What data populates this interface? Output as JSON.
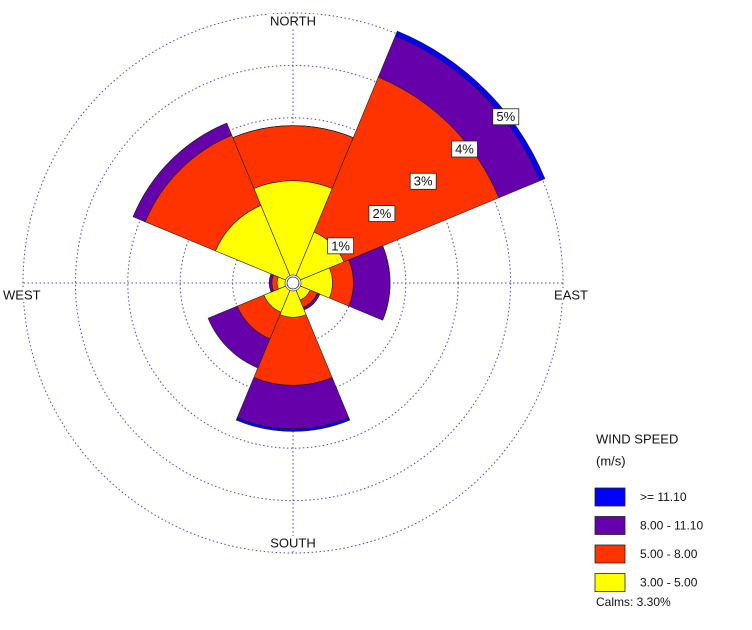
{
  "chart_data": {
    "type": "windrose",
    "categories": [
      "NORTH",
      null,
      "EAST",
      null,
      "SOUTH",
      null,
      "WEST",
      null
    ],
    "series": [
      {
        "name": ">= 11.10",
        "color": "#0000ff",
        "values": [
          0,
          0.1,
          0,
          0,
          0.05,
          0,
          0,
          0
        ]
      },
      {
        "name": "8.00 - 11.10",
        "color": "#6600aa",
        "values": [
          0,
          0.85,
          0.7,
          0.05,
          0.83,
          0.6,
          0.05,
          0.25
        ]
      },
      {
        "name": "5.00 - 8.00",
        "color": "#ff3300",
        "values": [
          1.05,
          3.2,
          0.4,
          0.15,
          1.3,
          0.55,
          0.1,
          1.45
        ]
      },
      {
        "name": "3.00 - 5.00",
        "color": "#ffff00",
        "values": [
          1.8,
          0.9,
          0.6,
          0.2,
          0.5,
          0.45,
          0.15,
          1.45
        ]
      }
    ],
    "rlim": [
      0,
      5
    ],
    "rticks": [
      {
        "value": 1,
        "label": "1%"
      },
      {
        "value": 2,
        "label": "2%"
      },
      {
        "value": 3,
        "label": "3%"
      },
      {
        "value": 4,
        "label": "4%"
      },
      {
        "value": 5,
        "label": "5%"
      }
    ],
    "legend_title": [
      "WIND SPEED",
      "(m/s)"
    ],
    "calms": "Calms: 3.30%",
    "grid": true
  }
}
